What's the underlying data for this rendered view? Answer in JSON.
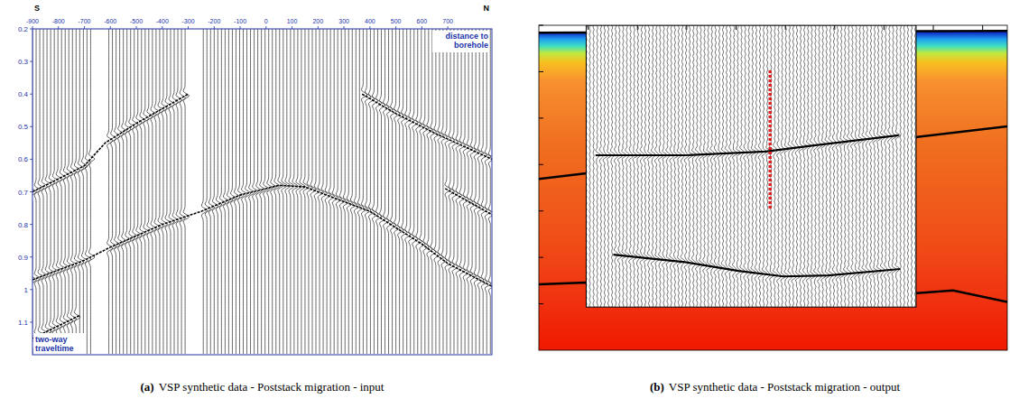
{
  "chart_data": [
    {
      "type": "wiggle",
      "label": "(a)",
      "caption": "VSP synthetic data - Poststack migration - input",
      "left_label": "S",
      "right_label": "N",
      "x_label": "distance to borehole",
      "y_label": "two-way traveltime",
      "xlim": [
        -900,
        870
      ],
      "xticks": [
        -900,
        -800,
        -700,
        -600,
        -500,
        -400,
        -300,
        -200,
        -100,
        0,
        100,
        200,
        300,
        400,
        500,
        600,
        700
      ],
      "ylim": [
        0.2,
        1.2
      ],
      "yticks": [
        0.2,
        0.3,
        0.4,
        0.5,
        0.6,
        0.7,
        0.8,
        0.9,
        1,
        1.1
      ],
      "trace_interval": 14,
      "gaps": [
        [
          -665,
          -620
        ],
        [
          -300,
          -255
        ]
      ],
      "events": [
        {
          "x": [
            -900,
            -700,
            -620,
            -500,
            -300
          ],
          "t": [
            0.7,
            0.62,
            0.55,
            0.49,
            0.4
          ]
        },
        {
          "x": [
            -900,
            -700,
            -600,
            -400,
            -250,
            -100,
            50,
            150,
            300,
            400,
            500,
            600,
            700,
            870
          ],
          "t": [
            0.97,
            0.91,
            0.87,
            0.8,
            0.76,
            0.71,
            0.68,
            0.685,
            0.73,
            0.76,
            0.81,
            0.86,
            0.92,
            0.99
          ]
        },
        {
          "x": [
            370,
            500,
            650,
            870
          ],
          "t": [
            0.4,
            0.46,
            0.52,
            0.6
          ]
        },
        {
          "x": [
            690,
            870
          ],
          "t": [
            0.69,
            0.77
          ]
        },
        {
          "x": [
            -900,
            -720
          ],
          "t": [
            1.15,
            1.08
          ]
        }
      ]
    },
    {
      "type": "migrated_section",
      "label": "(b)",
      "caption": "VSP synthetic data - Poststack migration - output",
      "tick_labels": false,
      "xlim": [
        0,
        9.5
      ],
      "xticks": [
        1,
        2,
        3,
        4,
        5,
        6,
        7,
        8,
        9
      ],
      "ylim": [
        0,
        7
      ],
      "yticks": [
        0,
        1,
        2,
        3,
        4,
        5,
        6
      ],
      "section_xlim": [
        0.96,
        7.65
      ],
      "section_ylim": [
        0,
        6.07
      ],
      "trace_interval": 0.075,
      "model_depths": [
        0.16,
        0.3,
        0.45,
        0.6,
        0.8,
        1.2,
        2.5,
        4.5,
        6,
        7
      ],
      "model_colors": [
        "#1030c8",
        "#20a0f0",
        "#40e0c0",
        "#c0e840",
        "#f8c020",
        "#f89030",
        "#f07020",
        "#f05018",
        "#f03010",
        "#f01800"
      ],
      "interfaces": [
        {
          "x": [
            0,
            9.5
          ],
          "y": [
            0.16,
            0.12
          ]
        },
        {
          "x": [
            0,
            0.96,
            7.65,
            9.5
          ],
          "y": [
            3.31,
            3.19,
            2.41,
            2.18
          ]
        },
        {
          "x": [
            0,
            0.96,
            7.65,
            8.4,
            9.5
          ],
          "y": [
            5.58,
            5.54,
            5.77,
            5.71,
            5.96
          ]
        }
      ],
      "reflectors": [
        {
          "x": [
            1.15,
            2.96,
            4.6,
            5.5,
            7.3
          ],
          "y": [
            2.8,
            2.8,
            2.72,
            2.6,
            2.37
          ]
        },
        {
          "x": [
            1.51,
            2.96,
            4.05,
            4.96,
            5.87,
            7.33
          ],
          "y": [
            4.94,
            5.1,
            5.29,
            5.41,
            5.39,
            5.25
          ]
        }
      ],
      "borehole": {
        "x": 4.69,
        "y": [
          0.97,
          3.97
        ]
      }
    }
  ]
}
